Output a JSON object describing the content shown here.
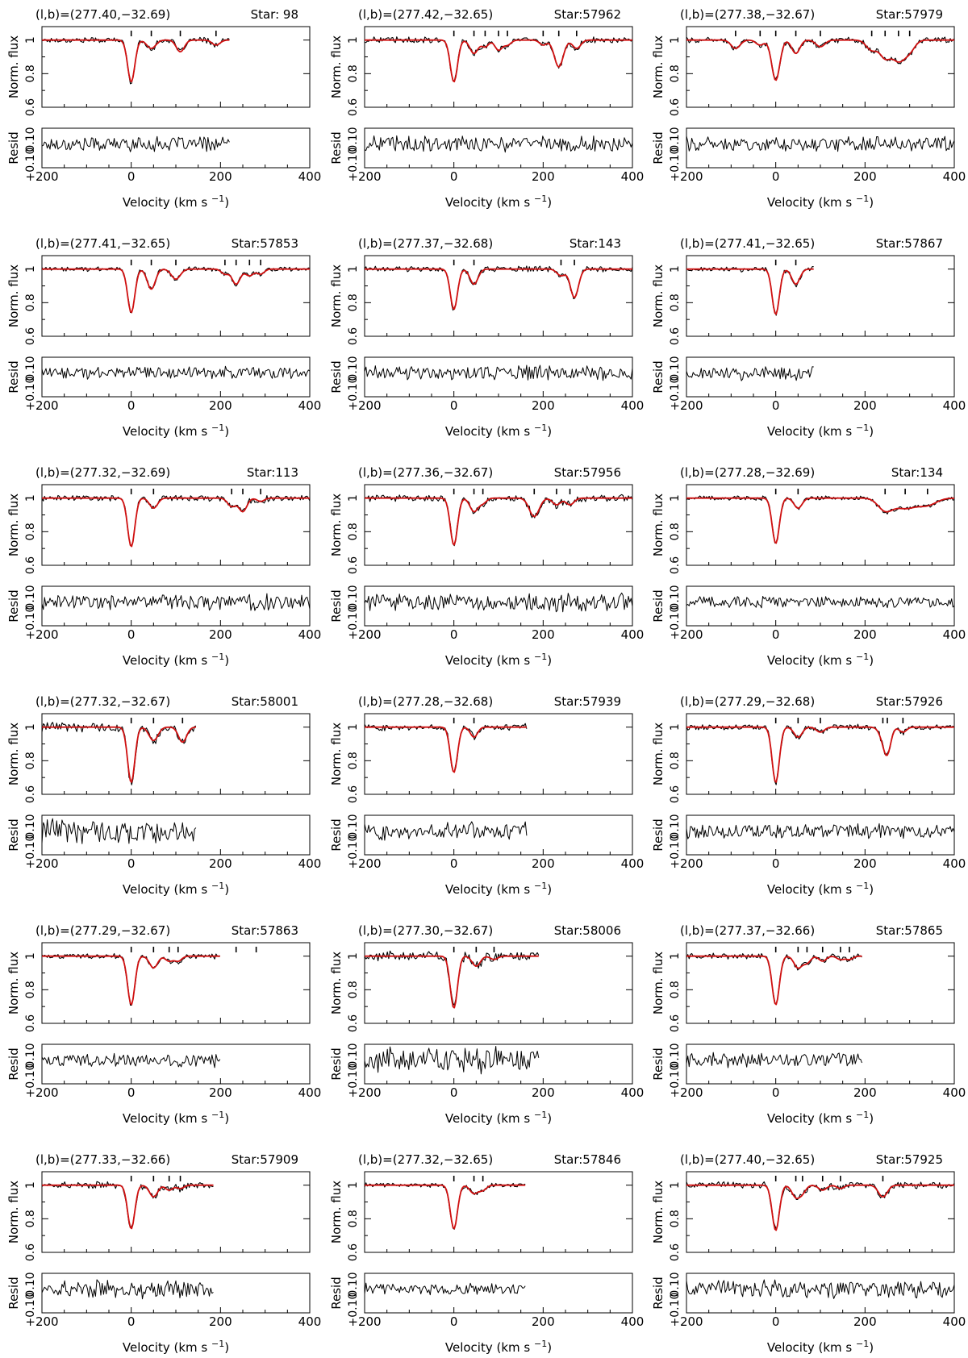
{
  "labels": {
    "flux_ylabel": "Norm. flux",
    "resid_ylabel": "Resid",
    "xlabel_prefix": "Velocity (km s",
    "xlabel_sup": "−1",
    "xlabel_suffix": ")"
  },
  "colors": {
    "data": "#000000",
    "model": "#d01010"
  },
  "chart_data": [
    {
      "type": "line",
      "coords": "(l,b)=(277.40,−32.69)",
      "star": "Star: 98",
      "vmax": 220,
      "xlim": [
        -200,
        400
      ],
      "ylim": [
        0.6,
        1.08
      ],
      "resid_ylim": [
        -0.1,
        0.1
      ],
      "xticks": [
        "−200",
        "0",
        "200",
        "400"
      ],
      "yticks": [
        "0.6",
        "0.8",
        "1"
      ],
      "resid_yticks": [
        "−0.10",
        "0.10"
      ],
      "components": [
        {
          "v": 0,
          "depth": 0.25,
          "width": 8
        },
        {
          "v": 45,
          "depth": 0.05,
          "width": 10
        },
        {
          "v": 110,
          "depth": 0.07,
          "width": 9
        },
        {
          "v": 190,
          "depth": 0.03,
          "width": 9
        }
      ],
      "noise": 0.009
    },
    {
      "type": "line",
      "coords": "(l,b)=(277.42,−32.65)",
      "star": "Star:57962",
      "vmax": 400,
      "xlim": [
        -200,
        400
      ],
      "ylim": [
        0.6,
        1.08
      ],
      "resid_ylim": [
        -0.1,
        0.1
      ],
      "xticks": [
        "−200",
        "0",
        "200",
        "400"
      ],
      "yticks": [
        "0.6",
        "0.8",
        "1"
      ],
      "resid_yticks": [
        "−0.10",
        "0.10"
      ],
      "components": [
        {
          "v": 0,
          "depth": 0.25,
          "width": 8
        },
        {
          "v": 45,
          "depth": 0.08,
          "width": 9
        },
        {
          "v": 70,
          "depth": 0.04,
          "width": 8
        },
        {
          "v": 100,
          "depth": 0.06,
          "width": 8
        },
        {
          "v": 120,
          "depth": 0.03,
          "width": 8
        },
        {
          "v": 200,
          "depth": 0.03,
          "width": 8
        },
        {
          "v": 235,
          "depth": 0.16,
          "width": 10
        },
        {
          "v": 275,
          "depth": 0.05,
          "width": 9
        }
      ],
      "noise": 0.01
    },
    {
      "type": "line",
      "coords": "(l,b)=(277.38,−32.67)",
      "star": "Star:57979",
      "vmax": 400,
      "xlim": [
        -200,
        400
      ],
      "ylim": [
        0.6,
        1.08
      ],
      "resid_ylim": [
        -0.1,
        0.1
      ],
      "xticks": [
        "−200",
        "0",
        "200",
        "400"
      ],
      "yticks": [
        "0.6",
        "0.8",
        "1"
      ],
      "resid_yticks": [
        "−0.10",
        "0.10"
      ],
      "components": [
        {
          "v": -90,
          "depth": 0.05,
          "width": 10
        },
        {
          "v": -35,
          "depth": 0.03,
          "width": 9
        },
        {
          "v": 0,
          "depth": 0.24,
          "width": 9
        },
        {
          "v": 45,
          "depth": 0.08,
          "width": 9
        },
        {
          "v": 100,
          "depth": 0.04,
          "width": 10
        },
        {
          "v": 215,
          "depth": 0.06,
          "width": 12
        },
        {
          "v": 245,
          "depth": 0.1,
          "width": 12
        },
        {
          "v": 275,
          "depth": 0.12,
          "width": 14
        },
        {
          "v": 300,
          "depth": 0.06,
          "width": 12
        }
      ],
      "noise": 0.009
    },
    {
      "type": "line",
      "coords": "(l,b)=(277.41,−32.65)",
      "star": "Star:57853",
      "vmax": 400,
      "xlim": [
        -200,
        400
      ],
      "ylim": [
        0.6,
        1.08
      ],
      "resid_ylim": [
        -0.1,
        0.1
      ],
      "xticks": [
        "−200",
        "0",
        "200",
        "400"
      ],
      "yticks": [
        "0.6",
        "0.8",
        "1"
      ],
      "resid_yticks": [
        "−0.10",
        "0.10"
      ],
      "components": [
        {
          "v": 0,
          "depth": 0.26,
          "width": 8
        },
        {
          "v": 45,
          "depth": 0.12,
          "width": 9
        },
        {
          "v": 100,
          "depth": 0.06,
          "width": 10
        },
        {
          "v": 210,
          "depth": 0.03,
          "width": 8
        },
        {
          "v": 235,
          "depth": 0.09,
          "width": 9
        },
        {
          "v": 265,
          "depth": 0.04,
          "width": 9
        },
        {
          "v": 290,
          "depth": 0.03,
          "width": 8
        }
      ],
      "noise": 0.008
    },
    {
      "type": "line",
      "coords": "(l,b)=(277.37,−32.68)",
      "star": "Star:143",
      "vmax": 400,
      "xlim": [
        -200,
        400
      ],
      "ylim": [
        0.6,
        1.08
      ],
      "resid_ylim": [
        -0.1,
        0.1
      ],
      "xticks": [
        "−200",
        "0",
        "200",
        "400"
      ],
      "yticks": [
        "0.6",
        "0.8",
        "1"
      ],
      "resid_yticks": [
        "−0.10",
        "0.10"
      ],
      "components": [
        {
          "v": 0,
          "depth": 0.24,
          "width": 8
        },
        {
          "v": 45,
          "depth": 0.09,
          "width": 9
        },
        {
          "v": 240,
          "depth": 0.04,
          "width": 9
        },
        {
          "v": 270,
          "depth": 0.17,
          "width": 9
        }
      ],
      "noise": 0.009
    },
    {
      "type": "line",
      "coords": "(l,b)=(277.41,−32.65)",
      "star": "Star:57867",
      "vmax": 85,
      "xlim": [
        -200,
        400
      ],
      "ylim": [
        0.6,
        1.08
      ],
      "resid_ylim": [
        -0.1,
        0.1
      ],
      "xticks": [
        "−200",
        "0",
        "200",
        "400"
      ],
      "yticks": [
        "0.6",
        "0.8",
        "1"
      ],
      "resid_yticks": [
        "−0.10",
        "0.10"
      ],
      "components": [
        {
          "v": 0,
          "depth": 0.27,
          "width": 8
        },
        {
          "v": 45,
          "depth": 0.09,
          "width": 9
        }
      ],
      "noise": 0.009
    },
    {
      "type": "line",
      "coords": "(l,b)=(277.32,−32.69)",
      "star": "Star:113",
      "vmax": 400,
      "xlim": [
        -200,
        400
      ],
      "ylim": [
        0.6,
        1.08
      ],
      "resid_ylim": [
        -0.1,
        0.1
      ],
      "xticks": [
        "−200",
        "0",
        "200",
        "400"
      ],
      "yticks": [
        "0.6",
        "0.8",
        "1"
      ],
      "resid_yticks": [
        "−0.10",
        "0.10"
      ],
      "components": [
        {
          "v": 0,
          "depth": 0.29,
          "width": 8
        },
        {
          "v": 50,
          "depth": 0.06,
          "width": 9
        },
        {
          "v": 225,
          "depth": 0.05,
          "width": 9
        },
        {
          "v": 250,
          "depth": 0.08,
          "width": 9
        },
        {
          "v": 290,
          "depth": 0.02,
          "width": 8
        }
      ],
      "noise": 0.01
    },
    {
      "type": "line",
      "coords": "(l,b)=(277.36,−32.67)",
      "star": "Star:57956",
      "vmax": 400,
      "xlim": [
        -200,
        400
      ],
      "ylim": [
        0.6,
        1.08
      ],
      "resid_ylim": [
        -0.1,
        0.1
      ],
      "xticks": [
        "−200",
        "0",
        "200",
        "400"
      ],
      "yticks": [
        "0.6",
        "0.8",
        "1"
      ],
      "resid_yticks": [
        "−0.10",
        "0.10"
      ],
      "components": [
        {
          "v": 0,
          "depth": 0.28,
          "width": 8
        },
        {
          "v": 45,
          "depth": 0.08,
          "width": 9
        },
        {
          "v": 65,
          "depth": 0.03,
          "width": 8
        },
        {
          "v": 180,
          "depth": 0.11,
          "width": 11
        },
        {
          "v": 230,
          "depth": 0.04,
          "width": 9
        },
        {
          "v": 260,
          "depth": 0.04,
          "width": 9
        }
      ],
      "noise": 0.011
    },
    {
      "type": "line",
      "coords": "(l,b)=(277.28,−32.69)",
      "star": "Star:134",
      "vmax": 400,
      "xlim": [
        -200,
        400
      ],
      "ylim": [
        0.6,
        1.08
      ],
      "resid_ylim": [
        -0.1,
        0.1
      ],
      "xticks": [
        "−200",
        "0",
        "200",
        "400"
      ],
      "yticks": [
        "0.6",
        "0.8",
        "1"
      ],
      "resid_yticks": [
        "−0.10",
        "0.10"
      ],
      "components": [
        {
          "v": 0,
          "depth": 0.27,
          "width": 8
        },
        {
          "v": 50,
          "depth": 0.06,
          "width": 9
        },
        {
          "v": 245,
          "depth": 0.07,
          "width": 16
        },
        {
          "v": 290,
          "depth": 0.06,
          "width": 24
        },
        {
          "v": 340,
          "depth": 0.04,
          "width": 20
        }
      ],
      "noise": 0.007
    },
    {
      "type": "line",
      "coords": "(l,b)=(277.32,−32.67)",
      "star": "Star:58001",
      "vmax": 145,
      "xlim": [
        -200,
        400
      ],
      "ylim": [
        0.6,
        1.08
      ],
      "resid_ylim": [
        -0.1,
        0.1
      ],
      "xticks": [
        "−200",
        "0",
        "200",
        "400"
      ],
      "yticks": [
        "0.6",
        "0.8",
        "1"
      ],
      "resid_yticks": [
        "−0.10",
        "0.10"
      ],
      "components": [
        {
          "v": 0,
          "depth": 0.33,
          "width": 8
        },
        {
          "v": 50,
          "depth": 0.08,
          "width": 10
        },
        {
          "v": 115,
          "depth": 0.09,
          "width": 9
        }
      ],
      "noise": 0.015
    },
    {
      "type": "line",
      "coords": "(l,b)=(277.28,−32.68)",
      "star": "Star:57939",
      "vmax": 165,
      "xlim": [
        -200,
        400
      ],
      "ylim": [
        0.6,
        1.08
      ],
      "resid_ylim": [
        -0.1,
        0.1
      ],
      "xticks": [
        "−200",
        "0",
        "200",
        "400"
      ],
      "yticks": [
        "0.6",
        "0.8",
        "1"
      ],
      "resid_yticks": [
        "−0.10",
        "0.10"
      ],
      "components": [
        {
          "v": 0,
          "depth": 0.27,
          "width": 8
        },
        {
          "v": 45,
          "depth": 0.06,
          "width": 8
        }
      ],
      "noise": 0.011
    },
    {
      "type": "line",
      "coords": "(l,b)=(277.29,−32.68)",
      "star": "Star:57926",
      "vmax": 400,
      "xlim": [
        -200,
        400
      ],
      "ylim": [
        0.6,
        1.08
      ],
      "resid_ylim": [
        -0.1,
        0.1
      ],
      "xticks": [
        "−200",
        "0",
        "200",
        "400"
      ],
      "yticks": [
        "0.6",
        "0.8",
        "1"
      ],
      "resid_yticks": [
        "−0.10",
        "0.10"
      ],
      "components": [
        {
          "v": 0,
          "depth": 0.33,
          "width": 8
        },
        {
          "v": 50,
          "depth": 0.06,
          "width": 9
        },
        {
          "v": 100,
          "depth": 0.03,
          "width": 9
        },
        {
          "v": 240,
          "depth": 0.05,
          "width": 9
        },
        {
          "v": 250,
          "depth": 0.14,
          "width": 8
        },
        {
          "v": 285,
          "depth": 0.03,
          "width": 8
        }
      ],
      "noise": 0.009
    },
    {
      "type": "line",
      "coords": "(l,b)=(277.29,−32.67)",
      "star": "Star:57863",
      "vmax": 200,
      "xlim": [
        -200,
        400
      ],
      "ylim": [
        0.6,
        1.08
      ],
      "resid_ylim": [
        -0.1,
        0.1
      ],
      "xticks": [
        "−200",
        "0",
        "200",
        "400"
      ],
      "yticks": [
        "0.6",
        "0.8",
        "1"
      ],
      "resid_yticks": [
        "−0.10",
        "0.10"
      ],
      "components": [
        {
          "v": 0,
          "depth": 0.29,
          "width": 8
        },
        {
          "v": 50,
          "depth": 0.07,
          "width": 9
        },
        {
          "v": 85,
          "depth": 0.03,
          "width": 8
        },
        {
          "v": 105,
          "depth": 0.03,
          "width": 8
        },
        {
          "v": 235,
          "depth": 0.0,
          "width": 8
        },
        {
          "v": 280,
          "depth": 0.0,
          "width": 8
        }
      ],
      "noise": 0.009
    },
    {
      "type": "line",
      "coords": "(l,b)=(277.30,−32.67)",
      "star": "Star:58006",
      "vmax": 190,
      "xlim": [
        -200,
        400
      ],
      "ylim": [
        0.6,
        1.08
      ],
      "resid_ylim": [
        -0.1,
        0.1
      ],
      "xticks": [
        "−200",
        "0",
        "200",
        "400"
      ],
      "yticks": [
        "0.6",
        "0.8",
        "1"
      ],
      "resid_yticks": [
        "−0.10",
        "0.10"
      ],
      "components": [
        {
          "v": 0,
          "depth": 0.31,
          "width": 8
        },
        {
          "v": 50,
          "depth": 0.06,
          "width": 9
        },
        {
          "v": 90,
          "depth": 0.02,
          "width": 8
        }
      ],
      "noise": 0.016
    },
    {
      "type": "line",
      "coords": "(l,b)=(277.37,−32.66)",
      "star": "Star:57865",
      "vmax": 195,
      "xlim": [
        -200,
        400
      ],
      "ylim": [
        0.6,
        1.08
      ],
      "resid_ylim": [
        -0.1,
        0.1
      ],
      "xticks": [
        "−200",
        "0",
        "200",
        "400"
      ],
      "yticks": [
        "0.6",
        "0.8",
        "1"
      ],
      "resid_yticks": [
        "−0.10",
        "0.10"
      ],
      "components": [
        {
          "v": 0,
          "depth": 0.29,
          "width": 8
        },
        {
          "v": 50,
          "depth": 0.07,
          "width": 9
        },
        {
          "v": 70,
          "depth": 0.04,
          "width": 8
        },
        {
          "v": 105,
          "depth": 0.03,
          "width": 8
        },
        {
          "v": 145,
          "depth": 0.02,
          "width": 8
        },
        {
          "v": 165,
          "depth": 0.02,
          "width": 8
        }
      ],
      "noise": 0.009
    },
    {
      "type": "line",
      "coords": "(l,b)=(277.33,−32.66)",
      "star": "Star:57909",
      "vmax": 185,
      "xlim": [
        -200,
        400
      ],
      "ylim": [
        0.6,
        1.08
      ],
      "resid_ylim": [
        -0.1,
        0.1
      ],
      "xticks": [
        "−200",
        "0",
        "200",
        "400"
      ],
      "yticks": [
        "0.6",
        "0.8",
        "1"
      ],
      "resid_yticks": [
        "−0.10",
        "0.10"
      ],
      "components": [
        {
          "v": 0,
          "depth": 0.26,
          "width": 8
        },
        {
          "v": 50,
          "depth": 0.07,
          "width": 9
        },
        {
          "v": 85,
          "depth": 0.03,
          "width": 8
        },
        {
          "v": 110,
          "depth": 0.02,
          "width": 8
        }
      ],
      "noise": 0.011
    },
    {
      "type": "line",
      "coords": "(l,b)=(277.32,−32.65)",
      "star": "Star:57846",
      "vmax": 160,
      "xlim": [
        -200,
        400
      ],
      "ylim": [
        0.6,
        1.08
      ],
      "resid_ylim": [
        -0.1,
        0.1
      ],
      "xticks": [
        "−200",
        "0",
        "200",
        "400"
      ],
      "yticks": [
        "0.6",
        "0.8",
        "1"
      ],
      "resid_yticks": [
        "−0.10",
        "0.10"
      ],
      "components": [
        {
          "v": 0,
          "depth": 0.26,
          "width": 8
        },
        {
          "v": 45,
          "depth": 0.05,
          "width": 9
        },
        {
          "v": 65,
          "depth": 0.03,
          "width": 8
        }
      ],
      "noise": 0.007
    },
    {
      "type": "line",
      "coords": "(l,b)=(277.40,−32.65)",
      "star": "Star:57925",
      "vmax": 400,
      "xlim": [
        -200,
        400
      ],
      "ylim": [
        0.6,
        1.08
      ],
      "resid_ylim": [
        -0.1,
        0.1
      ],
      "xticks": [
        "−200",
        "0",
        "200",
        "400"
      ],
      "yticks": [
        "0.6",
        "0.8",
        "1"
      ],
      "resid_yticks": [
        "−0.10",
        "0.10"
      ],
      "components": [
        {
          "v": 0,
          "depth": 0.27,
          "width": 8
        },
        {
          "v": 45,
          "depth": 0.07,
          "width": 9
        },
        {
          "v": 60,
          "depth": 0.04,
          "width": 8
        },
        {
          "v": 105,
          "depth": 0.03,
          "width": 9
        },
        {
          "v": 145,
          "depth": 0.02,
          "width": 8
        },
        {
          "v": 240,
          "depth": 0.07,
          "width": 10
        }
      ],
      "noise": 0.011
    }
  ]
}
